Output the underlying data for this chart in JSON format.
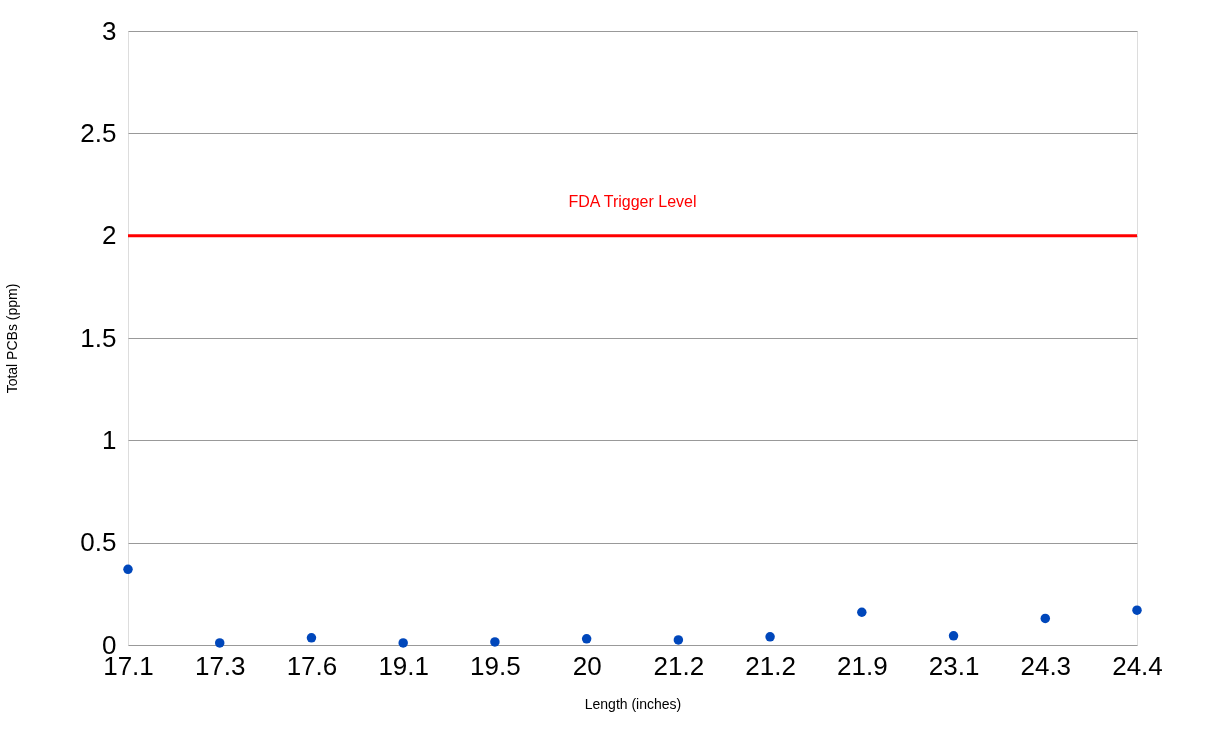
{
  "chart_data": {
    "type": "scatter",
    "xlabel": "Length (inches)",
    "ylabel": "Total PCBs (ppm)",
    "categories": [
      "17.1",
      "17.3",
      "17.6",
      "19.1",
      "19.5",
      "20",
      "21.2",
      "21.2",
      "21.9",
      "23.1",
      "24.3",
      "24.4"
    ],
    "series": [
      {
        "color": "#0047bb",
        "values": [
          0.37,
          0.01,
          0.035,
          0.01,
          0.015,
          0.03,
          0.025,
          0.04,
          0.16,
          0.045,
          0.13,
          0.17
        ]
      }
    ],
    "ylim": [
      0,
      3
    ],
    "yticks": [
      0,
      0.5,
      1,
      1.5,
      2,
      2.5,
      3
    ],
    "ref_lines": [
      {
        "axis": "y",
        "value": 2,
        "label": "FDA Trigger Level",
        "color": "#ff0000",
        "line_style": "solid"
      }
    ],
    "grid": "y",
    "marker": "circle"
  }
}
